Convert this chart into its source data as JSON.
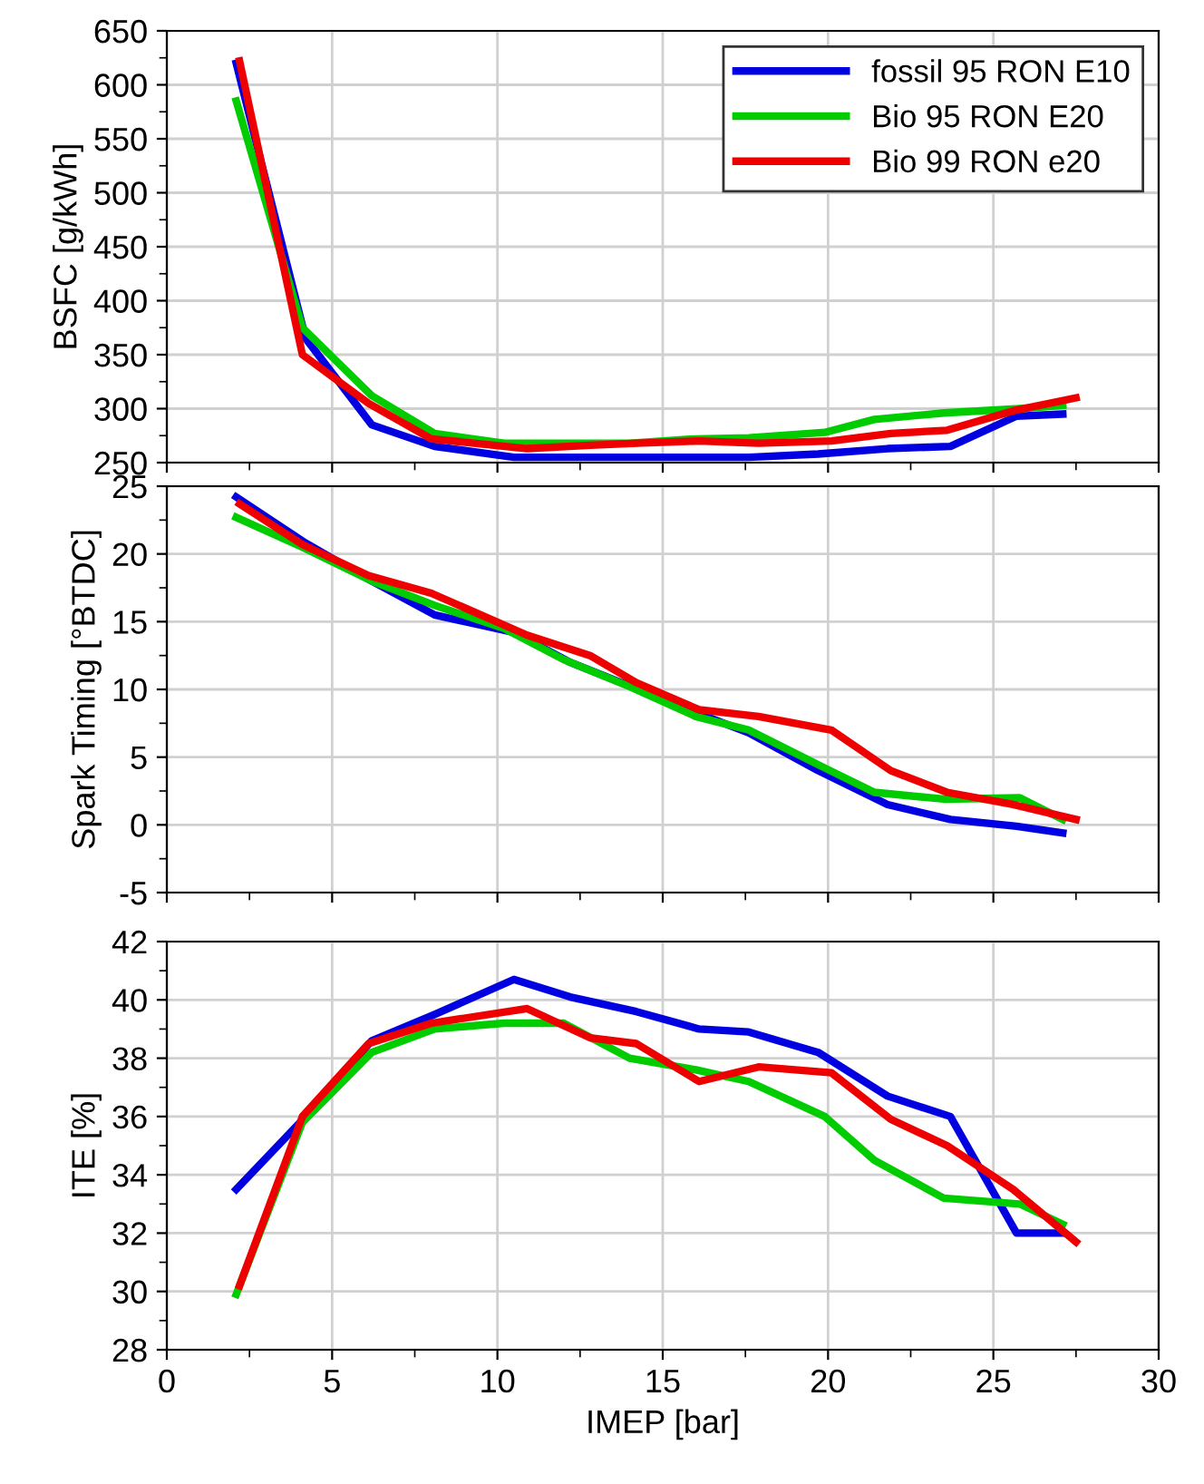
{
  "chart_data": [
    {
      "type": "line",
      "ylabel": "BSFC [g/kWh]",
      "xlim": [
        0,
        30
      ],
      "xticks": [
        0,
        5,
        10,
        15,
        20,
        25,
        30
      ],
      "ylim": [
        250,
        650
      ],
      "yticks": [
        250,
        300,
        350,
        400,
        450,
        500,
        550,
        600,
        650
      ],
      "grid": true,
      "legend": "top right",
      "tick_labels": "y",
      "series": [
        {
          "name": "fossil 95 RON E10",
          "color": "#0000e0",
          "x": [
            2.1,
            4.2,
            6.2,
            8.1,
            10.5,
            12.2,
            14.2,
            16.1,
            17.6,
            19.7,
            21.8,
            23.7,
            25.7,
            27.1
          ],
          "values": [
            620,
            365,
            285,
            265,
            255,
            255,
            255,
            255,
            255,
            258,
            263,
            265,
            293,
            295
          ]
        },
        {
          "name": "Bio 95 RON E20",
          "color": "#00cc00",
          "x": [
            2.1,
            4.1,
            6.2,
            8.1,
            10.2,
            12.0,
            14.0,
            16.0,
            17.6,
            19.9,
            21.4,
            23.5,
            25.8,
            27.1
          ],
          "values": [
            585,
            375,
            312,
            277,
            268,
            268,
            268,
            272,
            273,
            278,
            290,
            296,
            300,
            303
          ]
        },
        {
          "name": "Bio 99 RON e20",
          "color": "#ee0000",
          "x": [
            2.2,
            4.1,
            6.1,
            8.0,
            10.9,
            12.8,
            14.2,
            16.1,
            17.9,
            20.1,
            21.9,
            23.6,
            25.6,
            27.5
          ],
          "values": [
            622,
            350,
            305,
            272,
            263,
            266,
            268,
            270,
            268,
            270,
            277,
            280,
            298,
            310
          ]
        }
      ]
    },
    {
      "type": "line",
      "ylabel": "Spark Timing [°BTDC]",
      "xlim": [
        0,
        30
      ],
      "xticks": [
        0,
        5,
        10,
        15,
        20,
        25,
        30
      ],
      "ylim": [
        -5,
        25
      ],
      "yticks": [
        -5,
        0,
        5,
        10,
        15,
        20,
        25
      ],
      "grid": true,
      "tick_labels": "y",
      "series": [
        {
          "color": "#0000e0",
          "x": [
            2.1,
            4.2,
            6.2,
            8.1,
            10.5,
            12.2,
            16.1,
            17.6,
            19.7,
            21.8,
            23.7,
            25.7,
            27.1
          ],
          "values": [
            24.2,
            20.8,
            18.0,
            15.5,
            14.2,
            12.0,
            8.2,
            6.8,
            4.0,
            1.5,
            0.4,
            -0.1,
            -0.6
          ]
        },
        {
          "color": "#00cc00",
          "x": [
            2.1,
            4.1,
            6.2,
            8.1,
            10.2,
            12.0,
            14.0,
            16.0,
            17.6,
            19.9,
            21.4,
            23.5,
            25.8,
            27.1
          ],
          "values": [
            22.7,
            20.5,
            18.0,
            16.2,
            14.5,
            12.2,
            10.2,
            8.0,
            7.0,
            4.2,
            2.4,
            1.9,
            2.0,
            0.4
          ]
        },
        {
          "color": "#ee0000",
          "x": [
            2.2,
            4.1,
            6.1,
            8.0,
            10.9,
            12.8,
            14.2,
            16.1,
            17.9,
            20.1,
            21.9,
            23.6,
            25.6,
            27.5
          ],
          "values": [
            23.7,
            20.7,
            18.4,
            17.1,
            14.0,
            12.5,
            10.5,
            8.5,
            8.0,
            7.0,
            4.0,
            2.4,
            1.5,
            0.4
          ]
        }
      ]
    },
    {
      "type": "line",
      "xlabel": "IMEP [bar]",
      "ylabel": "ITE [%]",
      "xlim": [
        0,
        30
      ],
      "xticks": [
        0,
        5,
        10,
        15,
        20,
        25,
        30
      ],
      "ylim": [
        28,
        42
      ],
      "yticks": [
        28,
        30,
        32,
        34,
        36,
        38,
        40,
        42
      ],
      "grid": true,
      "series": [
        {
          "color": "#0000e0",
          "x": [
            2.1,
            4.2,
            6.2,
            8.1,
            10.5,
            12.2,
            14.2,
            16.1,
            17.6,
            19.7,
            21.8,
            23.7,
            25.7,
            27.1
          ],
          "values": [
            33.5,
            36.0,
            38.6,
            39.5,
            40.7,
            40.1,
            39.6,
            39.0,
            38.9,
            38.2,
            36.7,
            36.0,
            32.0,
            32.0
          ]
        },
        {
          "color": "#00cc00",
          "x": [
            2.1,
            4.1,
            6.2,
            8.1,
            10.2,
            12.0,
            14.0,
            16.0,
            17.6,
            19.9,
            21.4,
            23.5,
            25.8,
            27.1
          ],
          "values": [
            29.9,
            35.8,
            38.2,
            39.0,
            39.2,
            39.2,
            38.0,
            37.6,
            37.2,
            36.0,
            34.5,
            33.2,
            33.0,
            32.3
          ]
        },
        {
          "color": "#ee0000",
          "x": [
            2.2,
            4.1,
            6.1,
            8.0,
            10.9,
            12.8,
            14.2,
            16.1,
            17.9,
            20.1,
            21.9,
            23.6,
            25.6,
            27.5
          ],
          "values": [
            30.2,
            36.0,
            38.5,
            39.2,
            39.7,
            38.7,
            38.5,
            37.2,
            37.7,
            37.5,
            35.9,
            35.0,
            33.5,
            31.7
          ]
        }
      ]
    }
  ]
}
